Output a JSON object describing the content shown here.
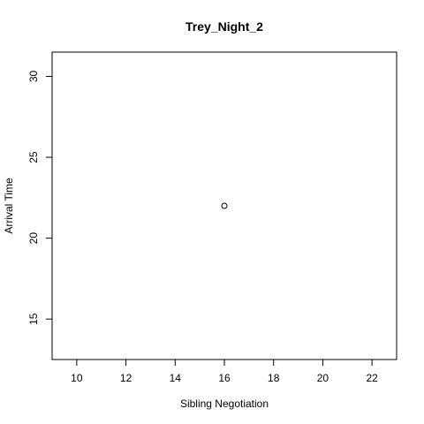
{
  "chart_data": {
    "type": "scatter",
    "title": "Trey_Night_2",
    "xlabel": "Sibling Negotiation",
    "ylabel": "Arrival Time",
    "xlim": [
      9,
      23
    ],
    "ylim": [
      12.5,
      31.5
    ],
    "xticks": [
      10,
      12,
      14,
      16,
      18,
      20,
      22
    ],
    "yticks": [
      15,
      20,
      25,
      30
    ],
    "points": [
      {
        "x": 16,
        "y": 22
      }
    ],
    "point_color": "#000000",
    "grid": false
  }
}
